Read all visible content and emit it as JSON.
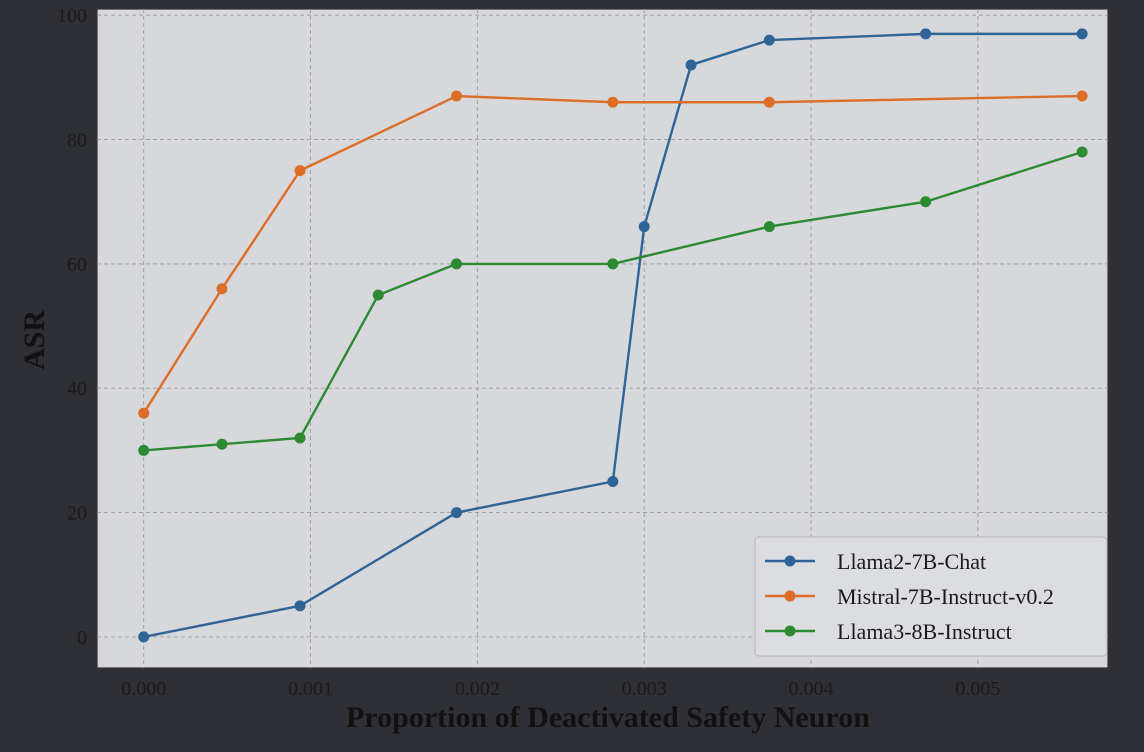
{
  "chart_data": {
    "type": "line",
    "title": "",
    "xlabel": "Proportion of Deactivated Safety Neuron",
    "ylabel": "ASR",
    "xlim": [
      -0.00028,
      0.00578
    ],
    "ylim": [
      -5,
      101
    ],
    "xticks": [
      0.0,
      0.001,
      0.002,
      0.003,
      0.004,
      0.005
    ],
    "xtick_labels": [
      "0.000",
      "0.001",
      "0.002",
      "0.003",
      "0.004",
      "0.005"
    ],
    "yticks": [
      0,
      20,
      40,
      60,
      80,
      100
    ],
    "ytick_labels": [
      "0",
      "20",
      "40",
      "60",
      "80",
      "100"
    ],
    "grid": true,
    "legend_position": "bottom-right",
    "series": [
      {
        "name": "Llama2-7B-Chat",
        "color": "#2f6497",
        "x": [
          0.0,
          0.000937,
          0.001875,
          0.002812,
          0.003,
          0.003281,
          0.00375,
          0.004687,
          0.005625
        ],
        "y": [
          0,
          5,
          20,
          25,
          66,
          92,
          96,
          97,
          97
        ]
      },
      {
        "name": "Mistral-7B-Instruct-v0.2",
        "color": "#dc6e28",
        "x": [
          0.0,
          0.000469,
          0.000937,
          0.001875,
          0.002812,
          0.00375,
          0.005625
        ],
        "y": [
          36,
          56,
          75,
          87,
          86,
          86,
          87
        ]
      },
      {
        "name": "Llama3-8B-Instruct",
        "color": "#2d8a32",
        "x": [
          0.0,
          0.000469,
          0.000937,
          0.001406,
          0.001875,
          0.002812,
          0.00375,
          0.004687,
          0.005625
        ],
        "y": [
          30,
          31,
          32,
          55,
          60,
          60,
          66,
          70,
          78
        ]
      }
    ]
  }
}
